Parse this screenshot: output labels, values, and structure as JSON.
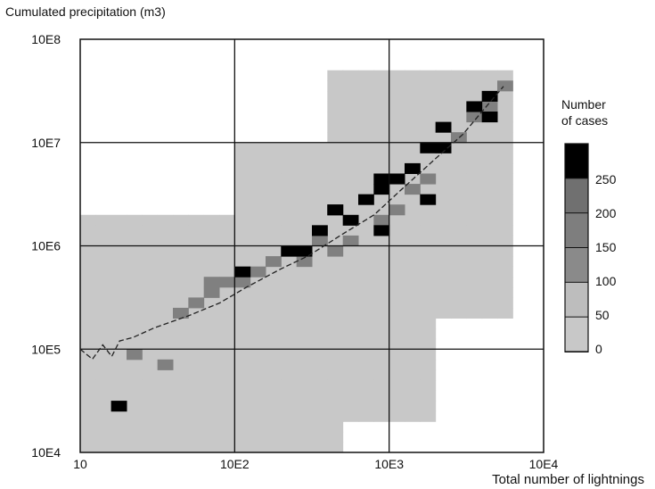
{
  "chart_data": {
    "type": "heatmap",
    "title": "",
    "ylabel": "Cumulated precipitation (m3)",
    "xlabel": "Total number of lightnings",
    "x_scale": "log",
    "y_scale": "log",
    "xlim": [
      10,
      10000
    ],
    "ylim": [
      10000,
      100000000
    ],
    "x_ticks": [
      "10",
      "10E2",
      "10E3",
      "10E4"
    ],
    "y_ticks": [
      "10E8",
      "10E7",
      "10E6",
      "10E5",
      "10E4"
    ],
    "grid": true,
    "legend": {
      "title": "Number of cases",
      "position": "right",
      "labels": [
        "250",
        "200",
        "150",
        "100",
        "50",
        "0"
      ],
      "colors": [
        "#000000",
        "#707070",
        "#7e7e7e",
        "#8a8a8a",
        "#bdbdbd",
        "#c8c8c8"
      ]
    },
    "colors": {
      "light": "#c8c8c8",
      "medium": "#808080",
      "dark": "#000000"
    },
    "density": {
      "x_bins_per_decade": 10,
      "y_bins_per_decade": 10,
      "light_region": [
        {
          "x_from": 10,
          "x_to": 500,
          "y_from": 10000,
          "y_to": 1800000
        },
        {
          "x_from": 100,
          "x_to": 1800,
          "y_from": 20000,
          "y_to": 9000000
        },
        {
          "x_from": 500,
          "x_to": 6000,
          "y_from": 200000,
          "y_to": 40000000
        }
      ],
      "medium_cells": [
        {
          "x": 18,
          "y": 30000
        },
        {
          "x": 23,
          "y": 80000
        },
        {
          "x": 35,
          "y": 70000
        },
        {
          "x": 45,
          "y": 200000
        },
        {
          "x": 55,
          "y": 300000
        },
        {
          "x": 65,
          "y": 350000
        },
        {
          "x": 75,
          "y": 400000
        },
        {
          "x": 90,
          "y": 450000
        },
        {
          "x": 110,
          "y": 500000
        },
        {
          "x": 130,
          "y": 600000
        },
        {
          "x": 160,
          "y": 700000
        },
        {
          "x": 200,
          "y": 800000
        },
        {
          "x": 250,
          "y": 900000
        },
        {
          "x": 300,
          "y": 700000
        },
        {
          "x": 350,
          "y": 1100000
        },
        {
          "x": 450,
          "y": 900000
        },
        {
          "x": 600,
          "y": 1200000
        },
        {
          "x": 800,
          "y": 1600000
        },
        {
          "x": 1000,
          "y": 2500000
        },
        {
          "x": 1300,
          "y": 3500000
        },
        {
          "x": 1700,
          "y": 5000000
        },
        {
          "x": 2200,
          "y": 8000000
        },
        {
          "x": 2800,
          "y": 12000000
        },
        {
          "x": 3600,
          "y": 18000000
        },
        {
          "x": 4500,
          "y": 25000000
        },
        {
          "x": 5500,
          "y": 35000000
        }
      ],
      "dark_cells": [
        {
          "x": 18,
          "y": 30000
        },
        {
          "x": 110,
          "y": 600000
        },
        {
          "x": 250,
          "y": 800000
        },
        {
          "x": 300,
          "y": 1000000
        },
        {
          "x": 380,
          "y": 1300000
        },
        {
          "x": 400,
          "y": 2500000
        },
        {
          "x": 500,
          "y": 2000000
        },
        {
          "x": 600,
          "y": 1800000
        },
        {
          "x": 700,
          "y": 2800000
        },
        {
          "x": 800,
          "y": 3500000
        },
        {
          "x": 900,
          "y": 4000000
        },
        {
          "x": 1100,
          "y": 5000000
        },
        {
          "x": 1300,
          "y": 6000000
        },
        {
          "x": 1600,
          "y": 8000000
        },
        {
          "x": 2000,
          "y": 10000000
        },
        {
          "x": 2500,
          "y": 14000000
        },
        {
          "x": 3200,
          "y": 20000000
        },
        {
          "x": 4000,
          "y": 18000000
        },
        {
          "x": 5000,
          "y": 30000000
        },
        {
          "x": 1800,
          "y": 3000000
        },
        {
          "x": 800,
          "y": 1500000
        }
      ]
    },
    "median_line": [
      {
        "x": 10,
        "y": 100000
      },
      {
        "x": 12,
        "y": 80000
      },
      {
        "x": 14,
        "y": 110000
      },
      {
        "x": 16,
        "y": 85000
      },
      {
        "x": 18,
        "y": 120000
      },
      {
        "x": 22,
        "y": 130000
      },
      {
        "x": 30,
        "y": 160000
      },
      {
        "x": 50,
        "y": 210000
      },
      {
        "x": 80,
        "y": 280000
      },
      {
        "x": 120,
        "y": 400000
      },
      {
        "x": 200,
        "y": 600000
      },
      {
        "x": 300,
        "y": 800000
      },
      {
        "x": 500,
        "y": 1300000
      },
      {
        "x": 800,
        "y": 2000000
      },
      {
        "x": 1200,
        "y": 3500000
      },
      {
        "x": 2000,
        "y": 7000000
      },
      {
        "x": 3000,
        "y": 12000000
      },
      {
        "x": 4000,
        "y": 20000000
      },
      {
        "x": 5500,
        "y": 35000000
      }
    ]
  }
}
